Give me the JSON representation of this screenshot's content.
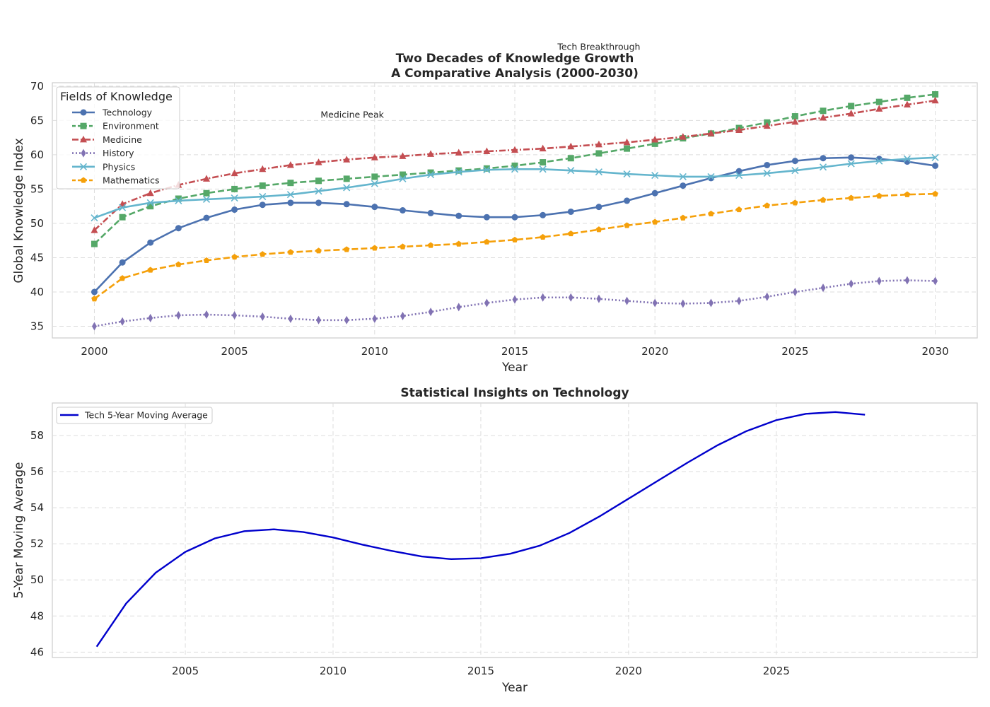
{
  "chart_data": [
    {
      "type": "line",
      "title": "Two Decades of Knowledge Growth\nA Comparative Analysis (2000-2030)",
      "xlabel": "Year",
      "ylabel": "Global Knowledge Index",
      "xlim": [
        1998.5,
        2031.5
      ],
      "ylim": [
        33.3,
        70.5
      ],
      "xticks": [
        2000,
        2005,
        2010,
        2015,
        2020,
        2025,
        2030
      ],
      "yticks": [
        35,
        40,
        45,
        50,
        55,
        60,
        65,
        70
      ],
      "grid": true,
      "legend": {
        "title": "Fields of Knowledge",
        "placement": "upper-left"
      },
      "x": [
        2000,
        2001,
        2002,
        2003,
        2004,
        2005,
        2006,
        2007,
        2008,
        2009,
        2010,
        2011,
        2012,
        2013,
        2014,
        2015,
        2016,
        2017,
        2018,
        2019,
        2020,
        2021,
        2022,
        2023,
        2024,
        2025,
        2026,
        2027,
        2028,
        2029,
        2030
      ],
      "series": [
        {
          "name": "Technology",
          "color": "#4c72b0",
          "linestyle": "solid",
          "marker": "circle",
          "values": [
            40.0,
            44.3,
            47.2,
            49.3,
            50.8,
            52.0,
            52.7,
            53.0,
            53.0,
            52.8,
            52.4,
            51.9,
            51.5,
            51.1,
            50.9,
            50.9,
            51.2,
            51.7,
            52.4,
            53.3,
            54.4,
            55.5,
            56.6,
            57.6,
            58.5,
            59.1,
            59.5,
            59.6,
            59.4,
            59.0,
            58.4
          ]
        },
        {
          "name": "Environment",
          "color": "#55a868",
          "linestyle": "dashed",
          "marker": "square",
          "values": [
            47.0,
            50.9,
            52.5,
            53.6,
            54.4,
            55.0,
            55.5,
            55.9,
            56.2,
            56.5,
            56.8,
            57.1,
            57.4,
            57.7,
            58.0,
            58.4,
            58.9,
            59.5,
            60.2,
            60.9,
            61.6,
            62.4,
            63.1,
            63.9,
            64.7,
            65.6,
            66.4,
            67.1,
            67.7,
            68.3,
            68.8
          ]
        },
        {
          "name": "Medicine",
          "color": "#c44e52",
          "linestyle": "dashdot",
          "marker": "triangle",
          "values": [
            49.0,
            52.8,
            54.4,
            55.6,
            56.5,
            57.3,
            57.9,
            58.5,
            58.9,
            59.3,
            59.6,
            59.8,
            60.1,
            60.3,
            60.5,
            60.7,
            60.9,
            61.2,
            61.5,
            61.8,
            62.2,
            62.6,
            63.1,
            63.6,
            64.2,
            64.8,
            65.4,
            66.0,
            66.7,
            67.3,
            67.9
          ]
        },
        {
          "name": "History",
          "color": "#8172b3",
          "linestyle": "dotted",
          "marker": "diamond",
          "values": [
            35.0,
            35.7,
            36.2,
            36.6,
            36.7,
            36.6,
            36.4,
            36.1,
            35.9,
            35.9,
            36.1,
            36.5,
            37.1,
            37.8,
            38.4,
            38.9,
            39.2,
            39.2,
            39.0,
            38.7,
            38.4,
            38.3,
            38.4,
            38.7,
            39.3,
            40.0,
            40.6,
            41.2,
            41.6,
            41.7,
            41.6
          ]
        },
        {
          "name": "Physics",
          "color": "#64b5cd",
          "linestyle": "solid",
          "marker": "x",
          "values": [
            50.8,
            52.3,
            53.0,
            53.3,
            53.5,
            53.7,
            53.9,
            54.2,
            54.7,
            55.2,
            55.8,
            56.5,
            57.1,
            57.5,
            57.8,
            57.9,
            57.9,
            57.7,
            57.5,
            57.2,
            57.0,
            56.8,
            56.8,
            57.0,
            57.3,
            57.7,
            58.2,
            58.7,
            59.1,
            59.4,
            59.6
          ]
        },
        {
          "name": "Mathematics",
          "color": "#f5a00a",
          "linestyle": "dashed",
          "marker": "pentagon",
          "values": [
            39.0,
            42.0,
            43.2,
            44.0,
            44.6,
            45.1,
            45.5,
            45.8,
            46.0,
            46.2,
            46.4,
            46.6,
            46.8,
            47.0,
            47.3,
            47.6,
            48.0,
            48.5,
            49.1,
            49.7,
            50.2,
            50.8,
            51.4,
            52.0,
            52.6,
            53.0,
            53.4,
            53.7,
            54.0,
            54.2,
            54.3
          ]
        }
      ],
      "annotations": [
        {
          "text": "Tech Breakthrough",
          "x": 2018,
          "y": 75.3
        },
        {
          "text": "Medicine Peak",
          "x": 2009.2,
          "y": 65.4
        }
      ]
    },
    {
      "type": "line",
      "title": "Statistical Insights on Technology",
      "xlabel": "Year",
      "ylabel": "5-Year Moving Average",
      "xlim": [
        2000.5,
        2031.8
      ],
      "ylim": [
        45.7,
        59.8
      ],
      "xticks": [
        2005,
        2010,
        2015,
        2020,
        2025
      ],
      "yticks": [
        46,
        48,
        50,
        52,
        54,
        56,
        58
      ],
      "grid": true,
      "legend": {
        "placement": "upper-left"
      },
      "x": [
        2002,
        2003,
        2004,
        2005,
        2006,
        2007,
        2008,
        2009,
        2010,
        2011,
        2012,
        2013,
        2014,
        2015,
        2016,
        2017,
        2018,
        2019,
        2020,
        2021,
        2022,
        2023,
        2024,
        2025,
        2026,
        2027,
        2028
      ],
      "series": [
        {
          "name": "Tech 5-Year Moving Average",
          "color": "#0000cc",
          "linestyle": "solid",
          "values": [
            46.3,
            48.7,
            50.4,
            51.55,
            52.3,
            52.7,
            52.8,
            52.65,
            52.35,
            51.95,
            51.6,
            51.3,
            51.15,
            51.2,
            51.45,
            51.9,
            52.6,
            53.5,
            54.5,
            55.5,
            56.5,
            57.45,
            58.25,
            58.85,
            59.2,
            59.3,
            59.15
          ]
        }
      ]
    }
  ]
}
